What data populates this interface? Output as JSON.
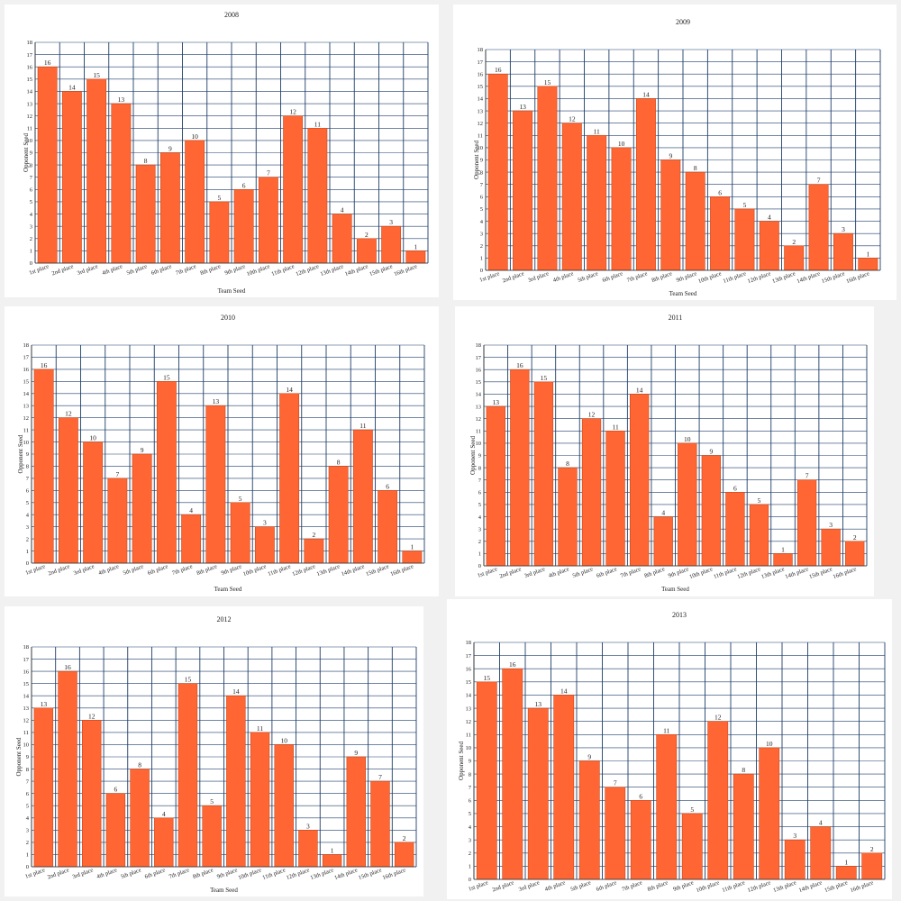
{
  "chart_data": [
    {
      "type": "bar",
      "title": "2008",
      "xlabel": "Team Seed",
      "ylabel": "Opponent Seed",
      "ylim": [
        0,
        18
      ],
      "categories": [
        "1st place",
        "2nd place",
        "3rd place",
        "4th place",
        "5th place",
        "6th place",
        "7th place",
        "8th place",
        "9th place",
        "10th place",
        "11th place",
        "12th place",
        "13th place",
        "14th place",
        "15th place",
        "16th place"
      ],
      "values": [
        16,
        14,
        15,
        13,
        8,
        9,
        10,
        5,
        6,
        7,
        12,
        11,
        4,
        2,
        3,
        1
      ]
    },
    {
      "type": "bar",
      "title": "2009",
      "xlabel": "Team Seed",
      "ylabel": "Opponent Seed",
      "ylim": [
        0,
        18
      ],
      "categories": [
        "1st place",
        "2nd place",
        "3rd place",
        "4th place",
        "5th place",
        "6th place",
        "7th place",
        "8th place",
        "9th place",
        "10th place",
        "11th place",
        "12th place",
        "13th place",
        "14th place",
        "15th place",
        "16th place"
      ],
      "values": [
        16,
        13,
        15,
        12,
        11,
        10,
        14,
        9,
        8,
        6,
        5,
        4,
        2,
        7,
        3,
        1
      ]
    },
    {
      "type": "bar",
      "title": "2010",
      "xlabel": "Team Seed",
      "ylabel": "Opponent Seed",
      "ylim": [
        0,
        18
      ],
      "categories": [
        "1st place",
        "2nd place",
        "3rd place",
        "4th place",
        "5th place",
        "6th place",
        "7th place",
        "8th place",
        "9th place",
        "10th place",
        "11th place",
        "12th place",
        "13th place",
        "14th place",
        "15th place",
        "16th place"
      ],
      "values": [
        16,
        12,
        10,
        7,
        9,
        15,
        4,
        13,
        5,
        3,
        14,
        2,
        8,
        11,
        6,
        1
      ]
    },
    {
      "type": "bar",
      "title": "2011",
      "xlabel": "Team Seed",
      "ylabel": "Opponent Seed",
      "ylim": [
        0,
        18
      ],
      "categories": [
        "1st place",
        "2nd place",
        "3rd place",
        "4th place",
        "5th place",
        "6th place",
        "7th place",
        "8th place",
        "9th place",
        "10th place",
        "11th place",
        "12th place",
        "13th place",
        "14th place",
        "15th place",
        "16th place"
      ],
      "values": [
        13,
        16,
        15,
        8,
        12,
        11,
        14,
        4,
        10,
        9,
        6,
        5,
        1,
        7,
        3,
        2
      ]
    },
    {
      "type": "bar",
      "title": "2012",
      "xlabel": "Team Seed",
      "ylabel": "Opponent Seed",
      "ylim": [
        0,
        18
      ],
      "categories": [
        "1st place",
        "2nd place",
        "3rd place",
        "4th place",
        "5th place",
        "6th place",
        "7th place",
        "8th place",
        "9th place",
        "10th place",
        "11th place",
        "12th place",
        "13th place",
        "14th place",
        "15th place",
        "16th place"
      ],
      "values": [
        13,
        16,
        12,
        6,
        8,
        4,
        15,
        5,
        14,
        11,
        10,
        3,
        1,
        9,
        7,
        2
      ]
    },
    {
      "type": "bar",
      "title": "2013",
      "xlabel": "",
      "ylabel": "Opponent Seed",
      "ylim": [
        0,
        18
      ],
      "categories": [
        "1st place",
        "2nd place",
        "3rd place",
        "4th place",
        "5th place",
        "6th place",
        "7th place",
        "8th place",
        "9th place",
        "10th place",
        "11th place",
        "12th place",
        "13th place",
        "14th place",
        "15th place",
        "16th place"
      ],
      "values": [
        15,
        16,
        13,
        14,
        9,
        7,
        6,
        11,
        5,
        12,
        8,
        10,
        3,
        4,
        1,
        2
      ]
    }
  ],
  "colors": {
    "bar": "#ff6633",
    "grid": "#1f3f6a",
    "panel": "#ffffff",
    "background": "#f1f1f1"
  }
}
